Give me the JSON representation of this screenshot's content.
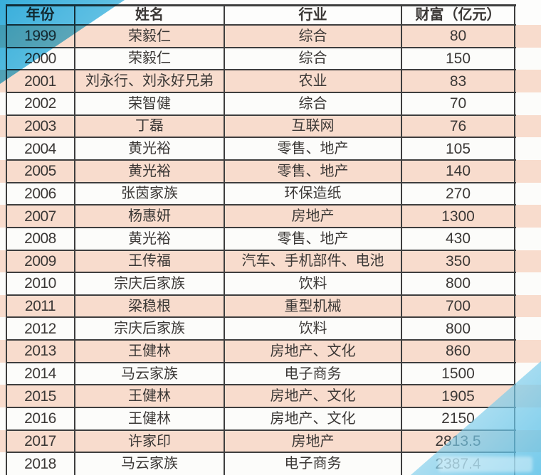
{
  "colors": {
    "row_peach": "#f8dccd",
    "row_white": "#fcfcfa",
    "header_bg": "#fdfdfc",
    "border_color": "#3e3e3e",
    "text_color": "#3b3836",
    "accent_blue": "#38b0de",
    "accent_blue_light": "#aadcf2"
  },
  "chart_data": {
    "type": "table",
    "columns": [
      "年份",
      "姓名",
      "行业",
      "财富（亿元）"
    ],
    "rows": [
      [
        "1999",
        "荣毅仁",
        "综合",
        "80"
      ],
      [
        "2000",
        "荣毅仁",
        "综合",
        "150"
      ],
      [
        "2001",
        "刘永行、刘永好兄弟",
        "农业",
        "83"
      ],
      [
        "2002",
        "荣智健",
        "综合",
        "70"
      ],
      [
        "2003",
        "丁磊",
        "互联网",
        "76"
      ],
      [
        "2004",
        "黄光裕",
        "零售、地产",
        "105"
      ],
      [
        "2005",
        "黄光裕",
        "零售、地产",
        "140"
      ],
      [
        "2006",
        "张茵家族",
        "环保造纸",
        "270"
      ],
      [
        "2007",
        "杨惠妍",
        "房地产",
        "1300"
      ],
      [
        "2008",
        "黄光裕",
        "零售、地产",
        "430"
      ],
      [
        "2009",
        "王传福",
        "汽车、手机部件、电池",
        "350"
      ],
      [
        "2010",
        "宗庆后家族",
        "饮料",
        "800"
      ],
      [
        "2011",
        "梁稳根",
        "重型机械",
        "700"
      ],
      [
        "2012",
        "宗庆后家族",
        "饮料",
        "800"
      ],
      [
        "2013",
        "王健林",
        "房地产、文化",
        "860"
      ],
      [
        "2014",
        "马云家族",
        "电子商务",
        "1500"
      ],
      [
        "2015",
        "王健林",
        "房地产、文化",
        "1905"
      ],
      [
        "2016",
        "王健林",
        "房地产、文化",
        "2150"
      ],
      [
        "2017",
        "许家印",
        "房地产",
        "2813.5"
      ],
      [
        "2018",
        "马云家族",
        "电子商务",
        "2387.4"
      ]
    ]
  }
}
